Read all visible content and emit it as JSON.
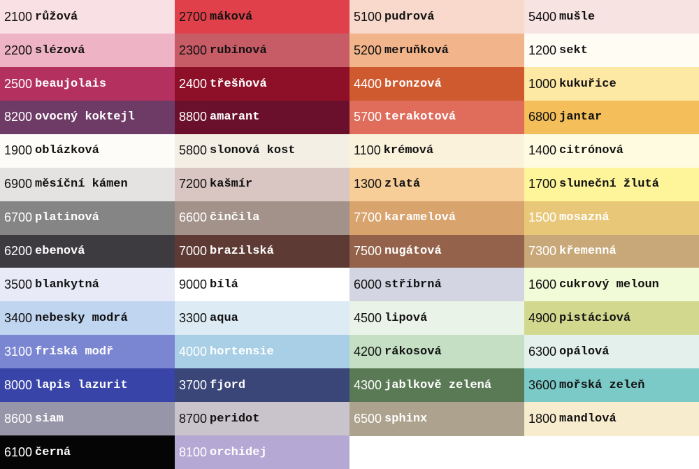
{
  "columns": [
    {
      "swatches": [
        {
          "code": "2100",
          "name": "růžová",
          "color": "#f9e0e4",
          "text_color": "#111"
        },
        {
          "code": "2200",
          "name": "slézová",
          "color": "#efb3c6",
          "text_color": "#111"
        },
        {
          "code": "2500",
          "name": "beaujolais",
          "color": "#b3305f",
          "text_color": "#fff"
        },
        {
          "code": "8200",
          "name": "ovocný koktejl",
          "color": "#6e3b66",
          "text_color": "#fff"
        },
        {
          "code": "1900",
          "name": "oblázková",
          "color": "#fdfcf8",
          "text_color": "#111"
        },
        {
          "code": "6900",
          "name": "měsíční kámen",
          "color": "#e4e3e1",
          "text_color": "#111"
        },
        {
          "code": "6700",
          "name": "platinová",
          "color": "#858585",
          "text_color": "#fff"
        },
        {
          "code": "6200",
          "name": "ebenová",
          "color": "#3e3b40",
          "text_color": "#fff"
        },
        {
          "code": "3500",
          "name": "blankytná",
          "color": "#e8eaf8",
          "text_color": "#111"
        },
        {
          "code": "3400",
          "name": "nebesky modrá",
          "color": "#c0d5f0",
          "text_color": "#111"
        },
        {
          "code": "3100",
          "name": "fríská modř",
          "color": "#7a86d2",
          "text_color": "#fff"
        },
        {
          "code": "8000",
          "name": "lapis lazurit",
          "color": "#3944a8",
          "text_color": "#fff"
        },
        {
          "code": "8600",
          "name": "siam",
          "color": "#9795a8",
          "text_color": "#fff"
        },
        {
          "code": "6100",
          "name": "černá",
          "color": "#050505",
          "text_color": "#fff"
        }
      ]
    },
    {
      "swatches": [
        {
          "code": "2700",
          "name": "máková",
          "color": "#e0404a",
          "text_color": "#111"
        },
        {
          "code": "2300",
          "name": "rubínová",
          "color": "#c75b66",
          "text_color": "#111"
        },
        {
          "code": "2400",
          "name": "třešňová",
          "color": "#8e1028",
          "text_color": "#fff"
        },
        {
          "code": "8800",
          "name": "amarant",
          "color": "#6a0f2c",
          "text_color": "#fff"
        },
        {
          "code": "5800",
          "name": "slonová kost",
          "color": "#f3efe4",
          "text_color": "#111"
        },
        {
          "code": "7200",
          "name": "kašmír",
          "color": "#d9c5c2",
          "text_color": "#111"
        },
        {
          "code": "6600",
          "name": "činčila",
          "color": "#a2928a",
          "text_color": "#fff"
        },
        {
          "code": "7000",
          "name": "brazilská",
          "color": "#5e3a34",
          "text_color": "#fff"
        },
        {
          "code": "9000",
          "name": "bílá",
          "color": "#ffffff",
          "text_color": "#111"
        },
        {
          "code": "3300",
          "name": "aqua",
          "color": "#ddebf4",
          "text_color": "#111"
        },
        {
          "code": "4000",
          "name": "hortensie",
          "color": "#a8cfe6",
          "text_color": "#fff"
        },
        {
          "code": "3700",
          "name": "fjord",
          "color": "#3a4578",
          "text_color": "#fff"
        },
        {
          "code": "8700",
          "name": "peridot",
          "color": "#c9c4cb",
          "text_color": "#111"
        },
        {
          "code": "8100",
          "name": "orchidej",
          "color": "#b5a8d4",
          "text_color": "#fff"
        }
      ]
    },
    {
      "swatches": [
        {
          "code": "5100",
          "name": "pudrová",
          "color": "#f8d9cc",
          "text_color": "#111"
        },
        {
          "code": "5200",
          "name": "meruňková",
          "color": "#f2b48a",
          "text_color": "#111"
        },
        {
          "code": "4400",
          "name": "bronzová",
          "color": "#cf5a30",
          "text_color": "#fff"
        },
        {
          "code": "5700",
          "name": "terakotová",
          "color": "#e06c5c",
          "text_color": "#fff"
        },
        {
          "code": "1100",
          "name": "krémová",
          "color": "#fbf2dc",
          "text_color": "#111"
        },
        {
          "code": "1300",
          "name": "zlatá",
          "color": "#f7ce98",
          "text_color": "#111"
        },
        {
          "code": "7700",
          "name": "karamelová",
          "color": "#d9a36e",
          "text_color": "#fff"
        },
        {
          "code": "7500",
          "name": "nugátová",
          "color": "#94624a",
          "text_color": "#fff"
        },
        {
          "code": "6000",
          "name": "stříbrná",
          "color": "#d3d5e3",
          "text_color": "#111"
        },
        {
          "code": "4500",
          "name": "lipová",
          "color": "#e9f3e7",
          "text_color": "#111"
        },
        {
          "code": "4200",
          "name": "rákosová",
          "color": "#c4dfc4",
          "text_color": "#111"
        },
        {
          "code": "4300",
          "name": "jablkově zelená",
          "color": "#5a7a55",
          "text_color": "#fff"
        },
        {
          "code": "6500",
          "name": "sphinx",
          "color": "#ada28e",
          "text_color": "#fff"
        }
      ]
    },
    {
      "swatches": [
        {
          "code": "5400",
          "name": "mušle",
          "color": "#f8e3e3",
          "text_color": "#111"
        },
        {
          "code": "1200",
          "name": "sekt",
          "color": "#fefcf3",
          "text_color": "#111"
        },
        {
          "code": "1000",
          "name": "kukuřice",
          "color": "#fde8a4",
          "text_color": "#111"
        },
        {
          "code": "6800",
          "name": "jantar",
          "color": "#f4be5a",
          "text_color": "#111"
        },
        {
          "code": "1400",
          "name": "citrónová",
          "color": "#fefbe0",
          "text_color": "#111"
        },
        {
          "code": "1700",
          "name": "sluneční žlutá",
          "color": "#fef59a",
          "text_color": "#111"
        },
        {
          "code": "1500",
          "name": "mosazná",
          "color": "#e8c878",
          "text_color": "#fff"
        },
        {
          "code": "7300",
          "name": "křemenná",
          "color": "#c8a878",
          "text_color": "#fff"
        },
        {
          "code": "1600",
          "name": "cukrový meloun",
          "color": "#f2fbd8",
          "text_color": "#111"
        },
        {
          "code": "4900",
          "name": "pistáciová",
          "color": "#d2d98e",
          "text_color": "#111"
        },
        {
          "code": "6300",
          "name": "opálová",
          "color": "#e4f0ec",
          "text_color": "#111"
        },
        {
          "code": "3600",
          "name": "mořská zeleň",
          "color": "#7ccac8",
          "text_color": "#111"
        },
        {
          "code": "1800",
          "name": "mandlová",
          "color": "#f8ecce",
          "text_color": "#111"
        }
      ]
    }
  ]
}
